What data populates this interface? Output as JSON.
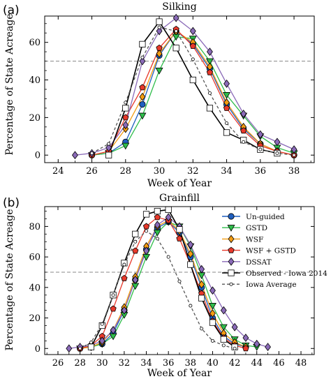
{
  "chart_data": [
    {
      "type": "line",
      "panel_label": "(a)",
      "title": "Silking",
      "xlabel": "Week of Year",
      "ylabel": "Percentage of State Acreage",
      "xlim": [
        23.2,
        39.2
      ],
      "ylim": [
        -4,
        74
      ],
      "xticks": [
        24,
        26,
        28,
        30,
        32,
        34,
        36,
        38
      ],
      "yticks": [
        0,
        20,
        40,
        60
      ],
      "reference_line_y": 50,
      "series": [
        {
          "name": "Un-guided",
          "color": "#1f5fbf",
          "marker": "circle",
          "dashed": false,
          "x": [
            26,
            27,
            28,
            29,
            30,
            31,
            32,
            33,
            34,
            35,
            36,
            37,
            38
          ],
          "y": [
            0,
            1,
            7,
            27,
            53,
            66,
            59,
            46,
            27,
            14,
            6,
            2,
            0
          ]
        },
        {
          "name": "GSTD",
          "color": "#2ebd4a",
          "marker": "triangle-down",
          "dashed": false,
          "x": [
            26,
            27,
            28,
            29,
            30,
            31,
            32,
            33,
            34,
            35,
            36,
            37,
            38
          ],
          "y": [
            0,
            1,
            5,
            21,
            45,
            63,
            62,
            50,
            32,
            21,
            10,
            4,
            1
          ]
        },
        {
          "name": "WSF",
          "color": "#f39c12",
          "marker": "diamond",
          "dashed": false,
          "x": [
            26,
            27,
            28,
            29,
            30,
            31,
            32,
            33,
            34,
            35,
            36,
            37,
            38
          ],
          "y": [
            0,
            2,
            14,
            31,
            54,
            66,
            60,
            47,
            28,
            15,
            6,
            2,
            0
          ]
        },
        {
          "name": "WSF + GSTD",
          "color": "#e8392b",
          "marker": "pentagon",
          "dashed": false,
          "x": [
            26,
            27,
            28,
            29,
            30,
            31,
            32,
            33,
            34,
            35,
            36,
            37,
            38
          ],
          "y": [
            0,
            2,
            20,
            36,
            57,
            67,
            58,
            44,
            25,
            13,
            5,
            2,
            0
          ]
        },
        {
          "name": "DSSAT",
          "color": "#8a6ab8",
          "marker": "diamond",
          "dashed": false,
          "x": [
            25,
            26,
            27,
            28,
            29,
            30,
            31,
            32,
            33,
            34,
            35,
            36,
            37,
            38
          ],
          "y": [
            0,
            1,
            4,
            16,
            50,
            66,
            73,
            66,
            55,
            38,
            22,
            11,
            7,
            3
          ]
        },
        {
          "name": "Observed - Iowa 2014",
          "color": "#000000",
          "marker": "square",
          "dashed": false,
          "x": [
            27,
            28,
            29,
            30,
            31,
            32,
            33,
            34,
            35,
            36,
            37
          ],
          "y": [
            0,
            25,
            59,
            71,
            57,
            40,
            25,
            12,
            8,
            3,
            1
          ]
        },
        {
          "name": "Iowa Average",
          "color": "#555555",
          "marker": "small-circle",
          "dashed": true,
          "x": [
            26,
            27,
            28,
            29,
            30,
            31,
            32,
            33,
            34,
            35,
            36,
            37,
            38
          ],
          "y": [
            1,
            6,
            28,
            52,
            68,
            66,
            51,
            33,
            17,
            7,
            3,
            1,
            0
          ]
        }
      ]
    },
    {
      "type": "line",
      "panel_label": "(b)",
      "title": "Grainfill",
      "xlabel": "Week of Year",
      "ylabel": "Percentage of State Acreage",
      "xlim": [
        24.8,
        49.2
      ],
      "ylim": [
        -4,
        93
      ],
      "xticks": [
        26,
        28,
        30,
        32,
        34,
        36,
        38,
        40,
        42,
        44,
        46,
        48
      ],
      "yticks": [
        0,
        20,
        40,
        60,
        80
      ],
      "reference_line_y": 50,
      "series": [
        {
          "name": "Un-guided",
          "color": "#1f5fbf",
          "marker": "circle",
          "dashed": false,
          "x": [
            28,
            29,
            30,
            31,
            32,
            33,
            34,
            35,
            36,
            37,
            38,
            39,
            40,
            41,
            42,
            43
          ],
          "y": [
            0,
            1,
            3,
            10,
            25,
            45,
            65,
            79,
            83,
            76,
            60,
            40,
            20,
            8,
            3,
            1
          ]
        },
        {
          "name": "GSTD",
          "color": "#2ebd4a",
          "marker": "triangle-down",
          "dashed": false,
          "x": [
            28,
            29,
            30,
            31,
            32,
            33,
            34,
            35,
            36,
            37,
            38,
            39,
            40,
            41,
            42,
            43,
            44
          ],
          "y": [
            0,
            1,
            3,
            8,
            22,
            41,
            60,
            76,
            83,
            80,
            67,
            48,
            28,
            14,
            6,
            2,
            1
          ]
        },
        {
          "name": "WSF",
          "color": "#f39c12",
          "marker": "diamond",
          "dashed": false,
          "x": [
            28,
            29,
            30,
            31,
            32,
            33,
            34,
            35,
            36,
            37,
            38,
            39,
            40,
            41,
            42,
            43
          ],
          "y": [
            0,
            1,
            4,
            12,
            27,
            47,
            67,
            80,
            84,
            77,
            62,
            42,
            23,
            10,
            4,
            1
          ]
        },
        {
          "name": "WSF + GSTD",
          "color": "#e8392b",
          "marker": "pentagon",
          "dashed": false,
          "x": [
            28,
            29,
            30,
            31,
            32,
            33,
            34,
            35,
            36,
            37,
            38,
            39,
            40,
            41,
            42,
            43
          ],
          "y": [
            0,
            2,
            8,
            26,
            46,
            64,
            80,
            86,
            84,
            72,
            55,
            36,
            18,
            7,
            2,
            0
          ]
        },
        {
          "name": "DSSAT",
          "color": "#8a6ab8",
          "marker": "diamond",
          "dashed": false,
          "x": [
            27,
            28,
            29,
            30,
            31,
            32,
            33,
            34,
            35,
            36,
            37,
            38,
            39,
            40,
            41,
            42,
            43,
            44,
            45
          ],
          "y": [
            0,
            1,
            2,
            5,
            12,
            25,
            45,
            64,
            81,
            86,
            80,
            68,
            52,
            38,
            25,
            14,
            7,
            3,
            1
          ]
        },
        {
          "name": "Observed - Iowa 2014",
          "color": "#000000",
          "marker": "square",
          "dashed": false,
          "x": [
            29,
            30,
            31,
            32,
            33,
            34,
            35,
            36,
            37,
            38,
            39,
            40,
            41,
            42
          ],
          "y": [
            1,
            15,
            35,
            56,
            75,
            88,
            90,
            91,
            78,
            55,
            33,
            17,
            6,
            1
          ]
        },
        {
          "name": "Iowa Average",
          "color": "#555555",
          "marker": "small-circle",
          "dashed": true,
          "x": [
            28,
            29,
            30,
            31,
            32,
            33,
            34,
            35,
            36,
            37,
            38,
            39,
            40,
            41,
            42
          ],
          "y": [
            0,
            4,
            16,
            35,
            55,
            70,
            77,
            72,
            60,
            44,
            28,
            13,
            5,
            2,
            0
          ]
        }
      ]
    }
  ]
}
